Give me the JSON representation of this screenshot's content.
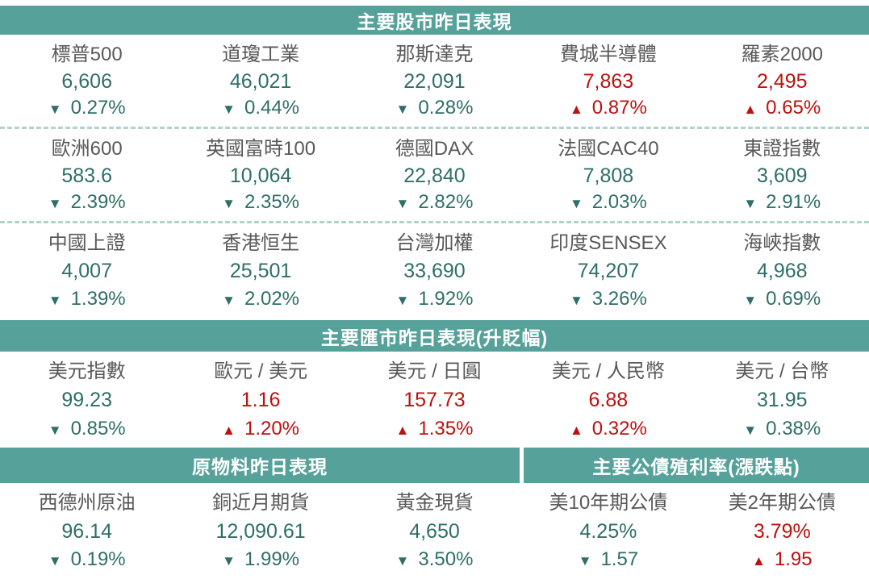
{
  "colors": {
    "header_bg": "#56a29b",
    "header_text": "#ffffff",
    "up_red": "#be100e",
    "down_teal": "#2e6f67",
    "label_gray": "#595959",
    "separator_teal": "#afd3cf",
    "background": "#ffffff"
  },
  "icons": {
    "up_triangle": "▲",
    "down_triangle": "▼"
  },
  "chart_data": [
    {
      "type": "table",
      "title": "主要股市昨日表現",
      "columns_per_row": 5,
      "rows": [
        [
          {
            "label": "標普500",
            "value": "6,606",
            "change": "0.27%",
            "direction": "down"
          },
          {
            "label": "道瓊工業",
            "value": "46,021",
            "change": "0.44%",
            "direction": "down"
          },
          {
            "label": "那斯達克",
            "value": "22,091",
            "change": "0.28%",
            "direction": "down"
          },
          {
            "label": "費城半導體",
            "value": "7,863",
            "change": "0.87%",
            "direction": "up"
          },
          {
            "label": "羅素2000",
            "value": "2,495",
            "change": "0.65%",
            "direction": "up"
          }
        ],
        [
          {
            "label": "歐洲600",
            "value": "583.6",
            "change": "2.39%",
            "direction": "down"
          },
          {
            "label": "英國富時100",
            "value": "10,064",
            "change": "2.35%",
            "direction": "down"
          },
          {
            "label": "德國DAX",
            "value": "22,840",
            "change": "2.82%",
            "direction": "down"
          },
          {
            "label": "法國CAC40",
            "value": "7,808",
            "change": "2.03%",
            "direction": "down"
          },
          {
            "label": "東證指數",
            "value": "3,609",
            "change": "2.91%",
            "direction": "down"
          }
        ],
        [
          {
            "label": "中國上證",
            "value": "4,007",
            "change": "1.39%",
            "direction": "down"
          },
          {
            "label": "香港恒生",
            "value": "25,501",
            "change": "2.02%",
            "direction": "down"
          },
          {
            "label": "台灣加權",
            "value": "33,690",
            "change": "1.92%",
            "direction": "down"
          },
          {
            "label": "印度SENSEX",
            "value": "74,207",
            "change": "3.26%",
            "direction": "down"
          },
          {
            "label": "海峽指數",
            "value": "4,968",
            "change": "0.69%",
            "direction": "down"
          }
        ]
      ]
    },
    {
      "type": "table",
      "title": "主要匯市昨日表現(升貶幅)",
      "columns_per_row": 5,
      "rows": [
        [
          {
            "label": "美元指數",
            "value": "99.23",
            "change": "0.85%",
            "direction": "down"
          },
          {
            "label": "歐元 / 美元",
            "value": "1.16",
            "change": "1.20%",
            "direction": "up"
          },
          {
            "label": "美元 / 日圓",
            "value": "157.73",
            "change": "1.35%",
            "direction": "up"
          },
          {
            "label": "美元 / 人民幣",
            "value": "6.88",
            "change": "0.32%",
            "direction": "up"
          },
          {
            "label": "美元 / 台幣",
            "value": "31.95",
            "change": "0.38%",
            "direction": "down"
          }
        ]
      ]
    },
    {
      "type": "table",
      "title": "原物料昨日表現",
      "columns_per_row": 3,
      "rows": [
        [
          {
            "label": "西德州原油",
            "value": "96.14",
            "change": "0.19%",
            "direction": "down"
          },
          {
            "label": "銅近月期貨",
            "value": "12,090.61",
            "change": "1.99%",
            "direction": "down"
          },
          {
            "label": "黃金現貨",
            "value": "4,650",
            "change": "3.50%",
            "direction": "down"
          }
        ]
      ]
    },
    {
      "type": "table",
      "title": "主要公債殖利率(漲跌點)",
      "columns_per_row": 2,
      "rows": [
        [
          {
            "label": "美10年期公債",
            "value": "4.25%",
            "change": "1.57",
            "direction": "down"
          },
          {
            "label": "美2年期公債",
            "value": "3.79%",
            "change": "1.95",
            "direction": "up"
          }
        ]
      ]
    }
  ]
}
